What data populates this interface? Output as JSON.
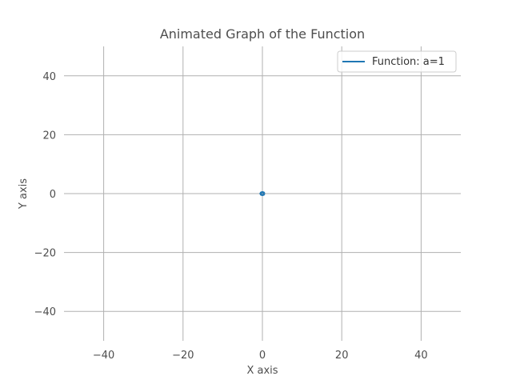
{
  "chart_data": {
    "type": "line",
    "title": "Animated Graph of the Function",
    "xlabel": "X axis",
    "ylabel": "Y axis",
    "xlim": [
      -50,
      50
    ],
    "ylim": [
      -50,
      50
    ],
    "xticks": [
      -40,
      -20,
      0,
      20,
      40
    ],
    "yticks": [
      -40,
      -20,
      0,
      20,
      40
    ],
    "xtick_labels": [
      "−40",
      "−20",
      "0",
      "20",
      "40"
    ],
    "ytick_labels": [
      "−40",
      "−20",
      "0",
      "20",
      "40"
    ],
    "grid": true,
    "legend_position": "top-right",
    "series": [
      {
        "name": "Function: a=1",
        "color": "#1f77b4",
        "x": [
          0.5,
          0.35,
          0.0,
          -0.35,
          -0.5,
          -0.35,
          0.0,
          0.35,
          0.5
        ],
        "y": [
          0.0,
          0.35,
          0.5,
          0.35,
          0.0,
          -0.35,
          -0.5,
          -0.35,
          0.0
        ]
      }
    ]
  },
  "colors": {
    "grid": "#b0b0b0",
    "text": "#4d4d4d",
    "legend_border": "#cccccc"
  }
}
